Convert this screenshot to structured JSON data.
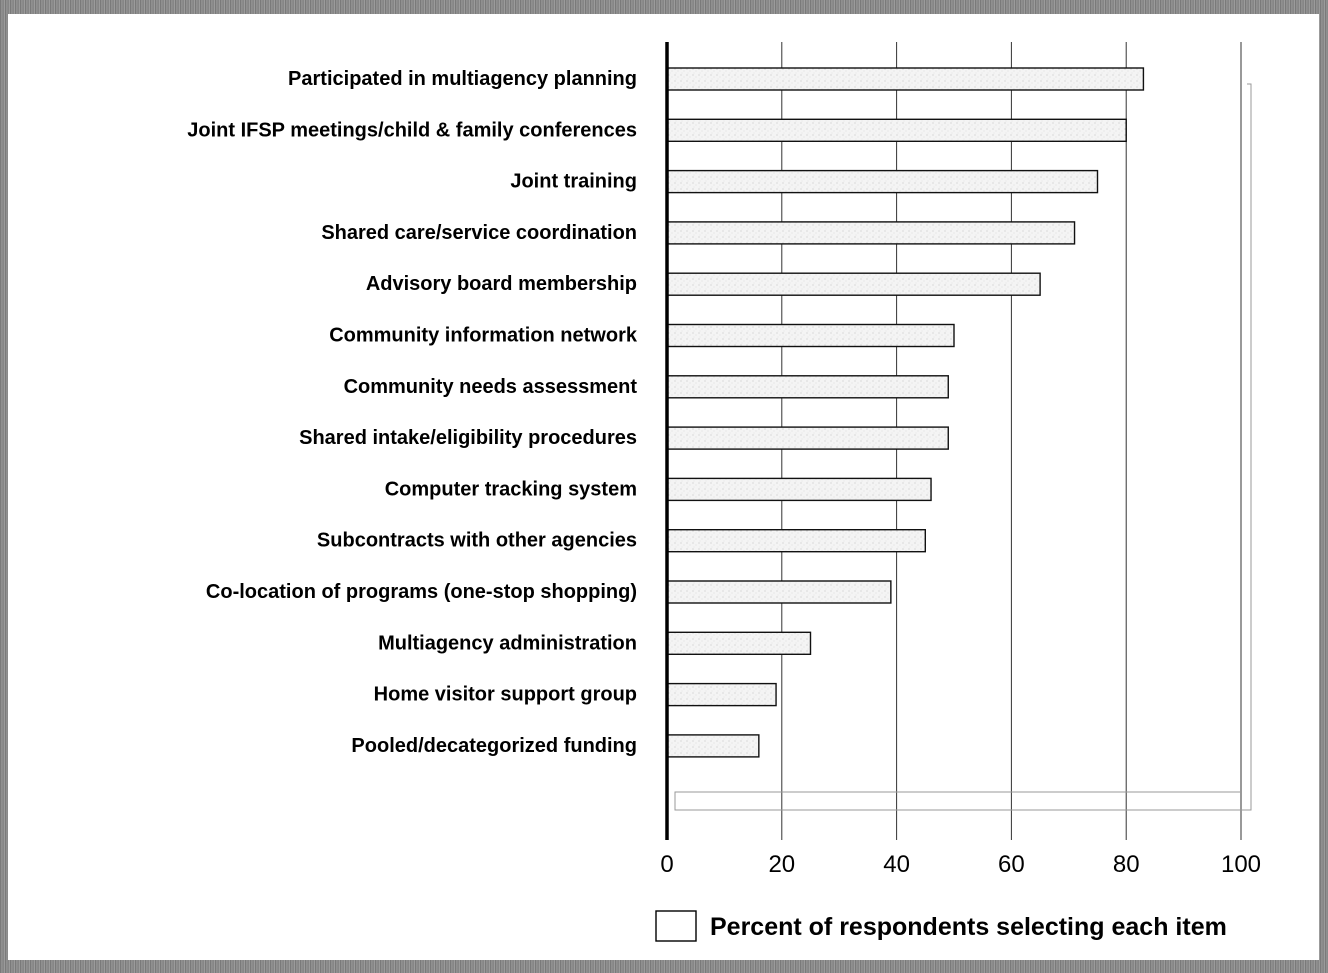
{
  "chart_data": {
    "type": "bar",
    "orientation": "horizontal",
    "categories": [
      "Participated in multiagency planning",
      "Joint IFSP meetings/child & family conferences",
      "Joint training",
      "Shared care/service coordination",
      "Advisory board membership",
      "Community information network",
      "Community needs assessment",
      "Shared intake/eligibility procedures",
      "Computer tracking system",
      "Subcontracts with other agencies",
      "Co-location of programs (one-stop shopping)",
      "Multiagency administration",
      "Home visitor support group",
      "Pooled/decategorized funding"
    ],
    "series": [
      {
        "name": "Percent of respondents selecting each item",
        "values": [
          83,
          80,
          75,
          71,
          65,
          50,
          49,
          49,
          46,
          45,
          39,
          25,
          19,
          16
        ]
      }
    ],
    "xlim": [
      0,
      100
    ],
    "xticks": [
      "0",
      "20",
      "40",
      "60",
      "80",
      "100"
    ],
    "xlabel": "",
    "ylabel": "",
    "title": "",
    "grid": "vertical",
    "legend_position": "bottom",
    "colors": {
      "bar_fill": "#f2f2f2",
      "bar_stroke": "#111111",
      "text": "#000000"
    }
  }
}
